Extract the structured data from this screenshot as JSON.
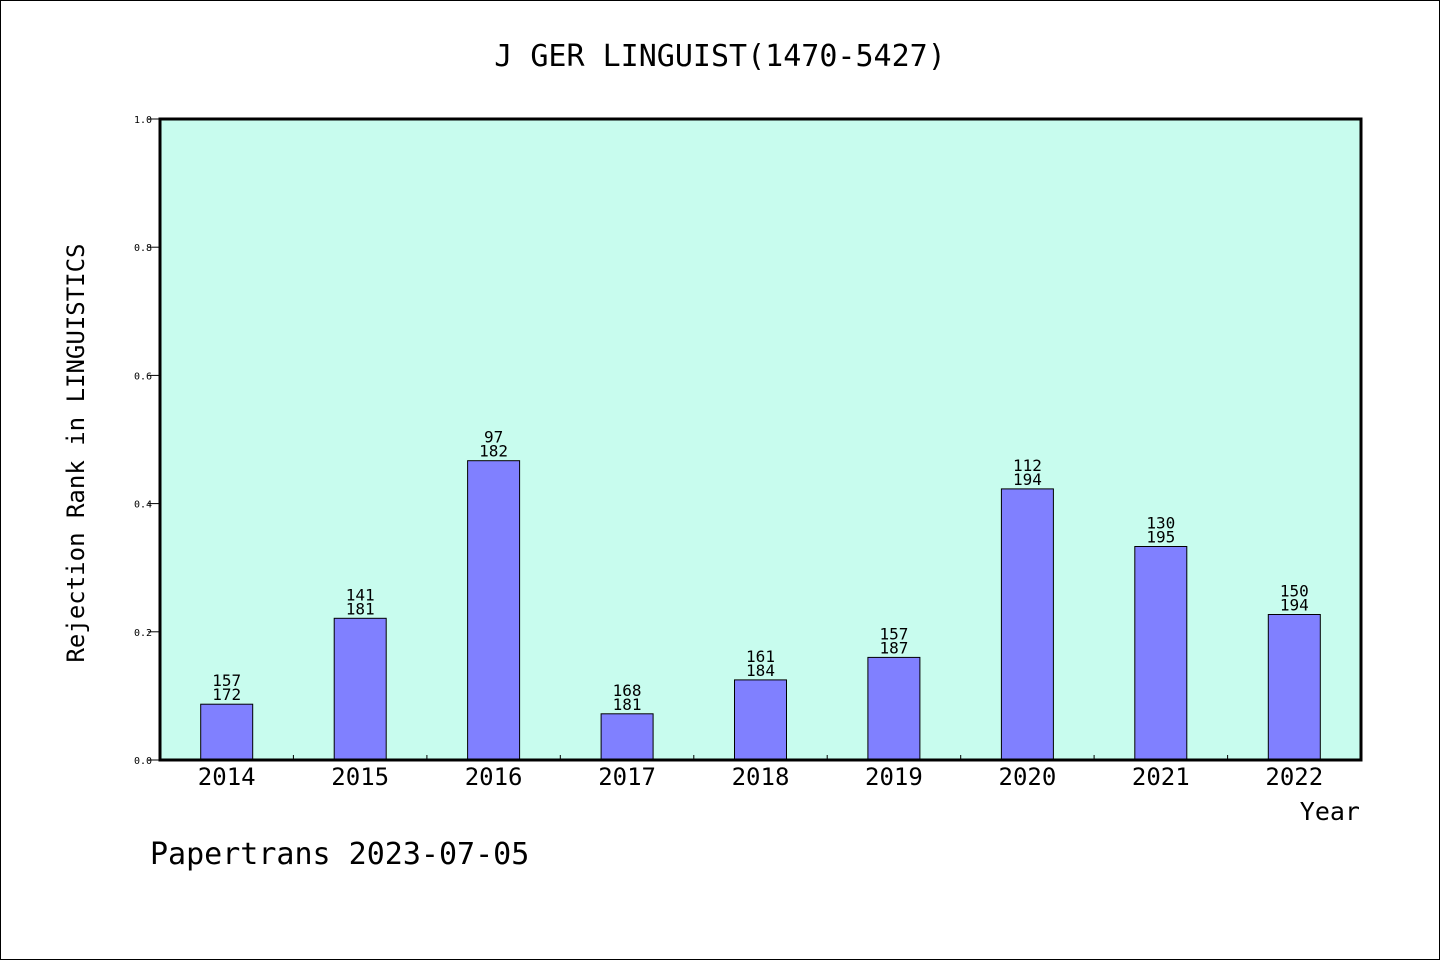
{
  "chart_data": {
    "type": "bar",
    "title": "J GER LINGUIST(1470-5427)",
    "xlabel": "Year",
    "ylabel": "Rejection Rank in LINGUISTICS",
    "ylim": [
      0,
      1.0
    ],
    "yticks": [
      "0.0",
      "0.2",
      "0.4",
      "0.6",
      "0.8",
      "1.0"
    ],
    "grid": false,
    "categories": [
      "2014",
      "2015",
      "2016",
      "2017",
      "2018",
      "2019",
      "2020",
      "2021",
      "2022"
    ],
    "values": [
      0.087,
      0.221,
      0.467,
      0.072,
      0.125,
      0.16,
      0.423,
      0.333,
      0.227
    ],
    "labels_top": [
      "157",
      "141",
      "97",
      "168",
      "161",
      "157",
      "112",
      "130",
      "150"
    ],
    "labels_bottom": [
      "172",
      "181",
      "182",
      "181",
      "184",
      "187",
      "194",
      "195",
      "194"
    ],
    "colors": {
      "plot_background": "#c8fcee",
      "bar_fill": "#8080ff",
      "bar_stroke": "#000000"
    }
  },
  "footer": {
    "credit": "Papertrans 2023-07-05"
  }
}
